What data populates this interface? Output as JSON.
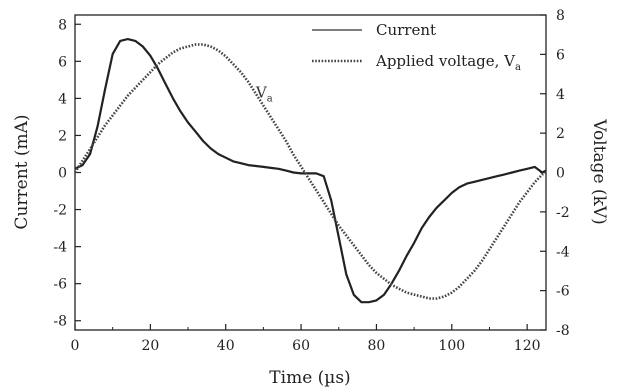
{
  "chart_data": {
    "type": "line",
    "xlabel": "Time (µs)",
    "ylabel_left": "Current (mA)",
    "ylabel_right": "Voltage (kV)",
    "xlim": [
      0,
      125
    ],
    "ylim_left": [
      -8.5,
      8.5
    ],
    "ylim_right": [
      -8,
      8
    ],
    "x_ticks": [
      "0",
      "20",
      "40",
      "60",
      "80",
      "100",
      "120"
    ],
    "y_left_ticks": [
      "8",
      "6",
      "4",
      "2",
      "0",
      "-2",
      "-4",
      "-6",
      "-8"
    ],
    "y_right_ticks": [
      "8",
      "6",
      "4",
      "2",
      "0",
      "-2",
      "-4",
      "-6",
      "-8"
    ],
    "grid": false,
    "legend_position": "top-right",
    "annotation": {
      "text": "V",
      "subscript": "a",
      "x": 48,
      "y_kv": 3.8
    },
    "series": [
      {
        "name": "Current",
        "axis": "left",
        "style": "solid",
        "points": [
          [
            0,
            0.2
          ],
          [
            2,
            0.4
          ],
          [
            4,
            1.0
          ],
          [
            6,
            2.5
          ],
          [
            8,
            4.5
          ],
          [
            10,
            6.4
          ],
          [
            12,
            7.1
          ],
          [
            14,
            7.2
          ],
          [
            16,
            7.1
          ],
          [
            18,
            6.8
          ],
          [
            20,
            6.3
          ],
          [
            22,
            5.6
          ],
          [
            24,
            4.8
          ],
          [
            26,
            4.0
          ],
          [
            28,
            3.3
          ],
          [
            30,
            2.7
          ],
          [
            32,
            2.2
          ],
          [
            34,
            1.7
          ],
          [
            36,
            1.3
          ],
          [
            38,
            1.0
          ],
          [
            40,
            0.8
          ],
          [
            42,
            0.6
          ],
          [
            44,
            0.5
          ],
          [
            46,
            0.4
          ],
          [
            48,
            0.35
          ],
          [
            50,
            0.3
          ],
          [
            52,
            0.25
          ],
          [
            54,
            0.2
          ],
          [
            56,
            0.1
          ],
          [
            58,
            0.0
          ],
          [
            60,
            -0.05
          ],
          [
            62,
            -0.05
          ],
          [
            64,
            -0.05
          ],
          [
            66,
            -0.2
          ],
          [
            68,
            -1.5
          ],
          [
            70,
            -3.5
          ],
          [
            72,
            -5.5
          ],
          [
            74,
            -6.6
          ],
          [
            76,
            -7.0
          ],
          [
            78,
            -7.0
          ],
          [
            80,
            -6.9
          ],
          [
            82,
            -6.6
          ],
          [
            84,
            -6.0
          ],
          [
            86,
            -5.3
          ],
          [
            88,
            -4.5
          ],
          [
            90,
            -3.8
          ],
          [
            92,
            -3.0
          ],
          [
            94,
            -2.4
          ],
          [
            96,
            -1.9
          ],
          [
            98,
            -1.5
          ],
          [
            100,
            -1.1
          ],
          [
            102,
            -0.8
          ],
          [
            104,
            -0.6
          ],
          [
            106,
            -0.5
          ],
          [
            108,
            -0.4
          ],
          [
            110,
            -0.3
          ],
          [
            112,
            -0.2
          ],
          [
            114,
            -0.1
          ],
          [
            116,
            0.0
          ],
          [
            118,
            0.1
          ],
          [
            120,
            0.2
          ],
          [
            122,
            0.3
          ],
          [
            124,
            0.0
          ],
          [
            125,
            0.1
          ]
        ]
      },
      {
        "name": "Applied voltage, Va",
        "axis": "right",
        "style": "dotted",
        "points": [
          [
            0,
            0.0
          ],
          [
            2,
            0.6
          ],
          [
            4,
            1.2
          ],
          [
            6,
            1.8
          ],
          [
            8,
            2.4
          ],
          [
            10,
            2.9
          ],
          [
            12,
            3.4
          ],
          [
            14,
            3.9
          ],
          [
            16,
            4.3
          ],
          [
            18,
            4.7
          ],
          [
            20,
            5.1
          ],
          [
            22,
            5.5
          ],
          [
            24,
            5.8
          ],
          [
            26,
            6.1
          ],
          [
            28,
            6.3
          ],
          [
            30,
            6.4
          ],
          [
            32,
            6.5
          ],
          [
            34,
            6.5
          ],
          [
            36,
            6.4
          ],
          [
            38,
            6.2
          ],
          [
            40,
            5.9
          ],
          [
            42,
            5.5
          ],
          [
            44,
            5.1
          ],
          [
            46,
            4.6
          ],
          [
            48,
            4.0
          ],
          [
            50,
            3.4
          ],
          [
            52,
            2.8
          ],
          [
            54,
            2.2
          ],
          [
            56,
            1.6
          ],
          [
            58,
            0.9
          ],
          [
            60,
            0.3
          ],
          [
            62,
            -0.3
          ],
          [
            64,
            -0.9
          ],
          [
            66,
            -1.5
          ],
          [
            68,
            -2.1
          ],
          [
            70,
            -2.7
          ],
          [
            72,
            -3.2
          ],
          [
            74,
            -3.7
          ],
          [
            76,
            -4.2
          ],
          [
            78,
            -4.7
          ],
          [
            80,
            -5.1
          ],
          [
            82,
            -5.4
          ],
          [
            84,
            -5.7
          ],
          [
            86,
            -5.9
          ],
          [
            88,
            -6.1
          ],
          [
            90,
            -6.2
          ],
          [
            92,
            -6.3
          ],
          [
            94,
            -6.4
          ],
          [
            96,
            -6.4
          ],
          [
            98,
            -6.3
          ],
          [
            100,
            -6.1
          ],
          [
            102,
            -5.8
          ],
          [
            104,
            -5.4
          ],
          [
            106,
            -5.0
          ],
          [
            108,
            -4.5
          ],
          [
            110,
            -3.9
          ],
          [
            112,
            -3.3
          ],
          [
            114,
            -2.7
          ],
          [
            116,
            -2.1
          ],
          [
            118,
            -1.5
          ],
          [
            120,
            -1.0
          ],
          [
            122,
            -0.5
          ],
          [
            124,
            -0.1
          ],
          [
            125,
            0.0
          ]
        ]
      }
    ]
  }
}
